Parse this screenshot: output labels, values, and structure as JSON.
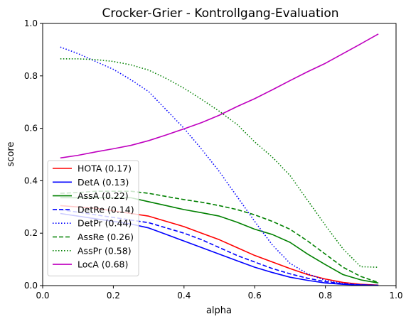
{
  "chart_data": {
    "type": "line",
    "title": "Crocker-Grier - Kontrollgang-Evaluation",
    "xlabel": "alpha",
    "ylabel": "score",
    "xlim": [
      0.0,
      1.0
    ],
    "ylim": [
      0.0,
      1.0
    ],
    "xticks": [
      "0.0",
      "0.2",
      "0.4",
      "0.6",
      "0.8",
      "1.0"
    ],
    "yticks": [
      "0.0",
      "0.2",
      "0.4",
      "0.6",
      "0.8",
      "1.0"
    ],
    "grid": false,
    "legend_position": "lower-left",
    "x": [
      0.05,
      0.1,
      0.15,
      0.2,
      0.25,
      0.3,
      0.35,
      0.4,
      0.45,
      0.5,
      0.55,
      0.6,
      0.65,
      0.7,
      0.75,
      0.8,
      0.85,
      0.9,
      0.95
    ],
    "series": [
      {
        "name": "HOTA (0.17)",
        "color": "#ff0000",
        "dash": "solid",
        "values": [
          0.305,
          0.3,
          0.295,
          0.285,
          0.275,
          0.265,
          0.245,
          0.225,
          0.2,
          0.175,
          0.145,
          0.115,
          0.09,
          0.065,
          0.042,
          0.025,
          0.012,
          0.005,
          0.002
        ]
      },
      {
        "name": "DetA (0.13)",
        "color": "#0000ff",
        "dash": "solid",
        "values": [
          0.275,
          0.265,
          0.255,
          0.245,
          0.235,
          0.22,
          0.195,
          0.17,
          0.145,
          0.12,
          0.095,
          0.07,
          0.05,
          0.032,
          0.02,
          0.01,
          0.005,
          0.002,
          0.001
        ]
      },
      {
        "name": "AssA (0.22)",
        "color": "#008000",
        "dash": "solid",
        "values": [
          0.335,
          0.335,
          0.335,
          0.335,
          0.335,
          0.32,
          0.305,
          0.29,
          0.278,
          0.265,
          0.242,
          0.215,
          0.195,
          0.165,
          0.12,
          0.08,
          0.042,
          0.022,
          0.01
        ]
      },
      {
        "name": "DetRe (0.14)",
        "color": "#0000ff",
        "dash": "dashed",
        "values": [
          0.29,
          0.28,
          0.27,
          0.26,
          0.25,
          0.24,
          0.22,
          0.2,
          0.175,
          0.145,
          0.115,
          0.09,
          0.065,
          0.045,
          0.028,
          0.015,
          0.007,
          0.003,
          0.001
        ]
      },
      {
        "name": "DetPr (0.44)",
        "color": "#0000ff",
        "dash": "dotted",
        "values": [
          0.91,
          0.885,
          0.855,
          0.825,
          0.785,
          0.74,
          0.67,
          0.6,
          0.52,
          0.435,
          0.34,
          0.245,
          0.155,
          0.085,
          0.045,
          0.02,
          0.008,
          0.003,
          0.001
        ]
      },
      {
        "name": "AssRe (0.26)",
        "color": "#008000",
        "dash": "dashed",
        "values": [
          0.352,
          0.355,
          0.36,
          0.36,
          0.36,
          0.352,
          0.34,
          0.328,
          0.318,
          0.305,
          0.29,
          0.27,
          0.245,
          0.215,
          0.17,
          0.12,
          0.07,
          0.035,
          0.012
        ]
      },
      {
        "name": "AssPr (0.58)",
        "color": "#008000",
        "dash": "dotted",
        "values": [
          0.865,
          0.865,
          0.862,
          0.855,
          0.842,
          0.822,
          0.79,
          0.753,
          0.71,
          0.665,
          0.615,
          0.548,
          0.49,
          0.42,
          0.325,
          0.23,
          0.14,
          0.072,
          0.07
        ]
      },
      {
        "name": "LocA (0.68)",
        "color": "#bf00bf",
        "dash": "solid",
        "values": [
          0.487,
          0.497,
          0.51,
          0.522,
          0.535,
          0.553,
          0.575,
          0.598,
          0.622,
          0.65,
          0.683,
          0.713,
          0.747,
          0.782,
          0.816,
          0.848,
          0.885,
          0.922,
          0.96
        ]
      }
    ]
  }
}
